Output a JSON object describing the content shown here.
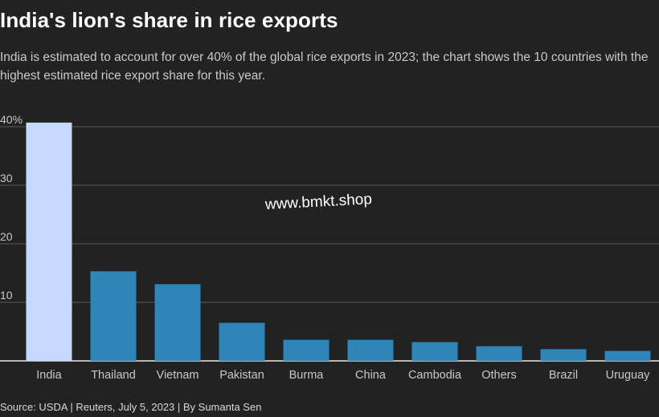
{
  "title": "India's lion's share in rice exports",
  "subtitle": "India is estimated to account for over 40% of the global rice exports in 2023; the chart shows the 10 countries with the highest estimated rice export share for this year.",
  "footer": "Source: USDA | Reuters, July 5, 2023 | By Sumanta Sen",
  "watermark": "www.bmkt.shop",
  "colors": {
    "background": "#222222",
    "highlight_bar": "#c6d9ff",
    "bar": "#2f84b8",
    "grid": "#5a5a5a",
    "tick_text": "#c8c8c8"
  },
  "chart_data": {
    "type": "bar",
    "categories": [
      "India",
      "Thailand",
      "Vietnam",
      "Pakistan",
      "Burma",
      "China",
      "Cambodia",
      "Others",
      "Brazil",
      "Uruguay"
    ],
    "values": [
      40.7,
      15.3,
      13.1,
      6.5,
      3.6,
      3.6,
      3.2,
      2.5,
      2.0,
      1.7
    ],
    "highlight": "India",
    "ylim": [
      0,
      40
    ],
    "yticks": [
      0,
      10,
      20,
      30,
      40
    ],
    "ytick_labels": [
      "",
      "10",
      "20",
      "30",
      "40%"
    ],
    "grid": true,
    "xlabel": "",
    "ylabel": ""
  }
}
